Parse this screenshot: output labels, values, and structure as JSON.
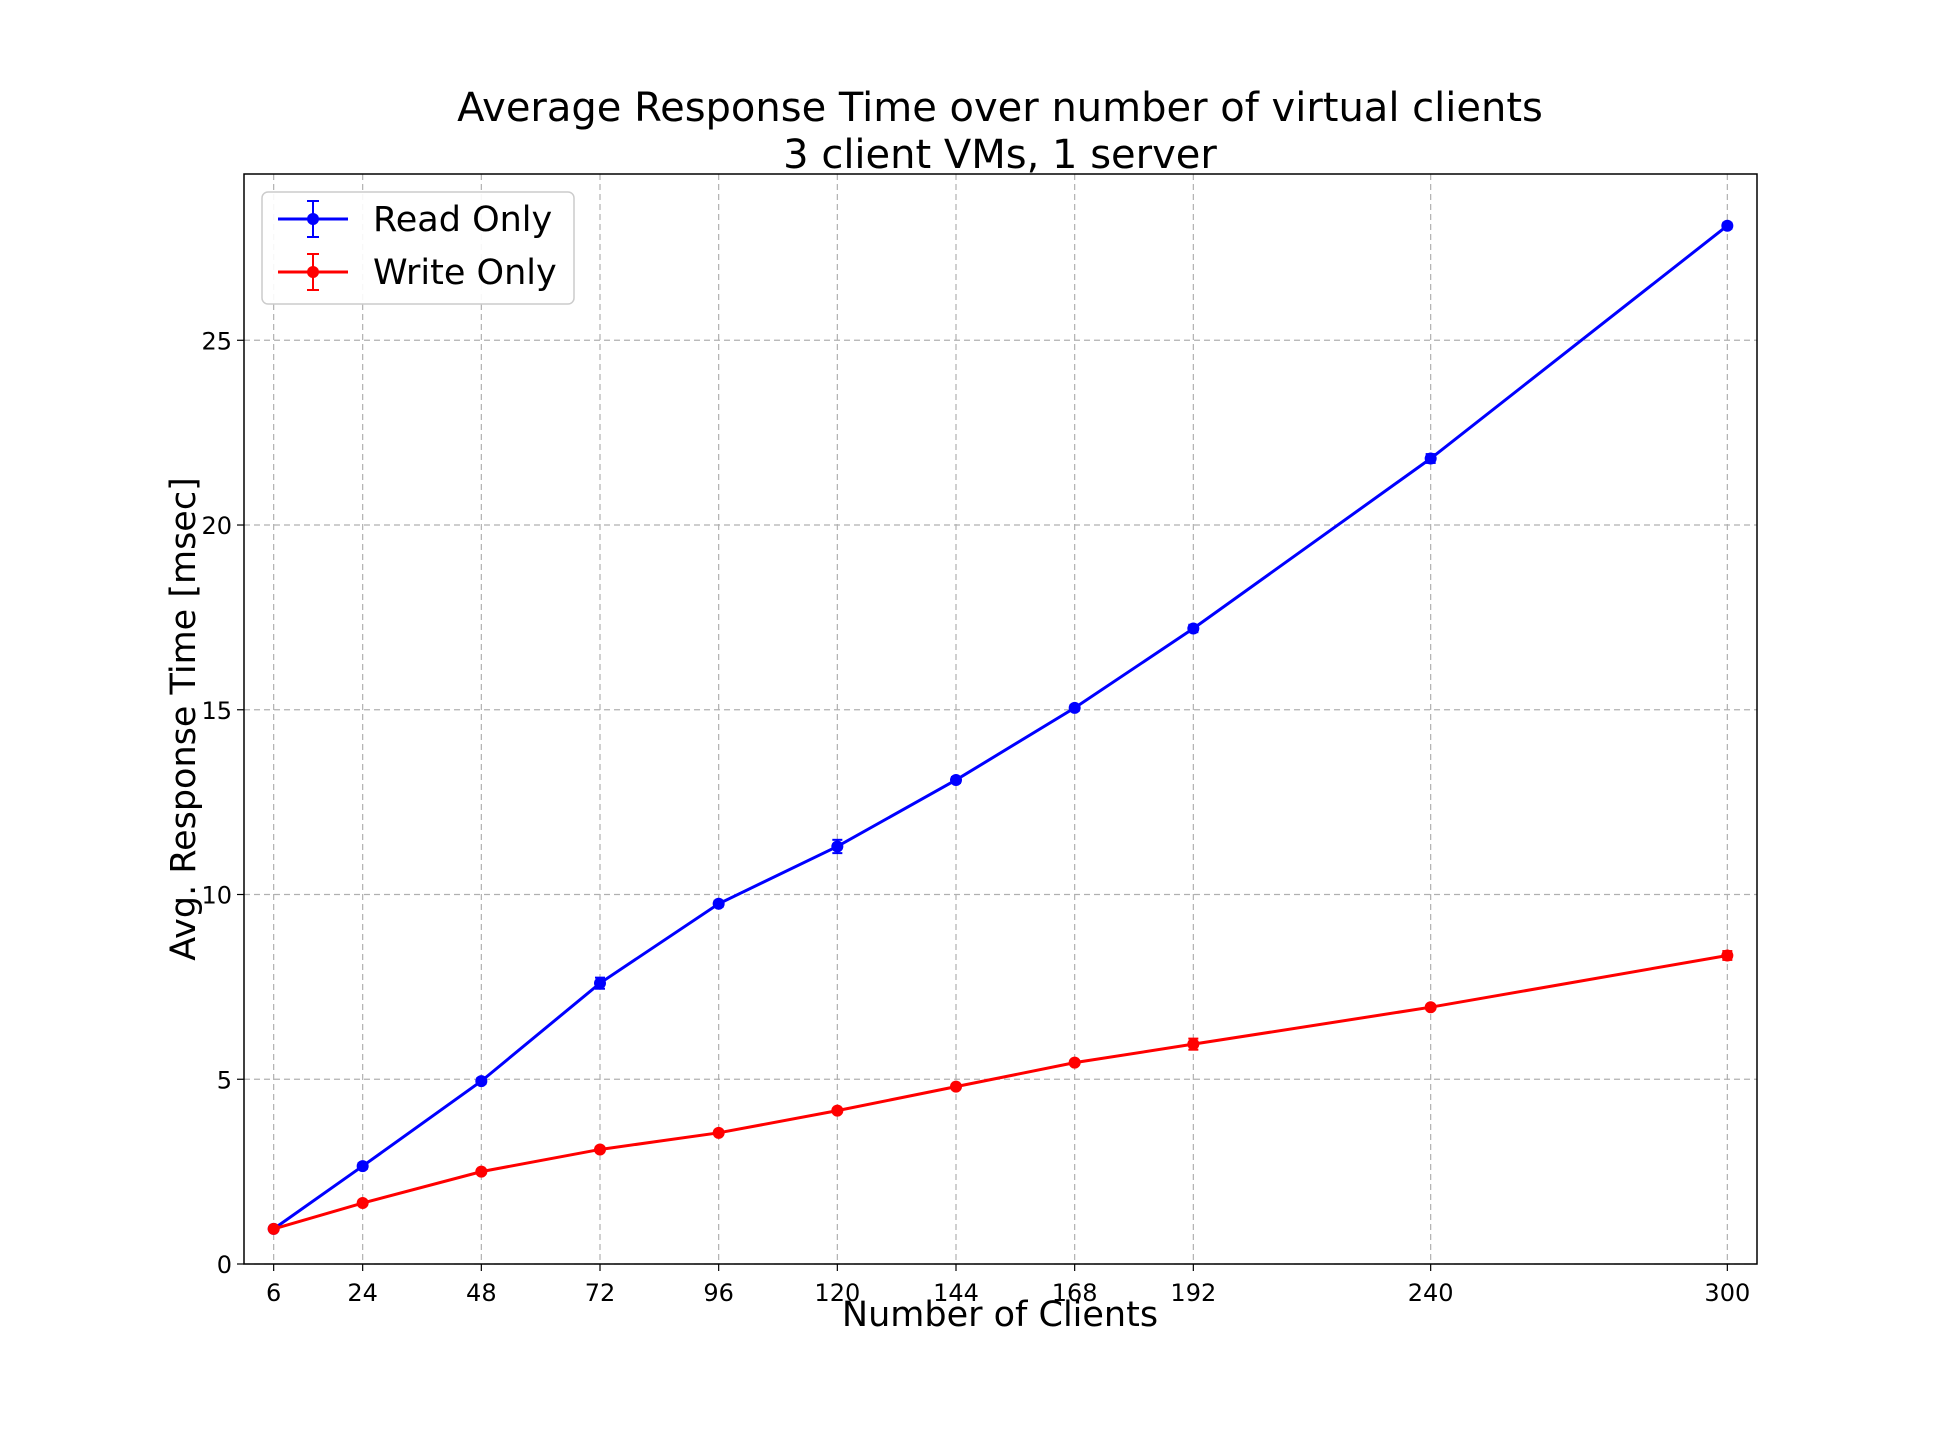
{
  "chart_data": {
    "type": "line",
    "title": "Average Response Time over number of virtual clients",
    "subtitle": "3 client VMs, 1 server",
    "xlabel": "Number of Clients",
    "ylabel": "Avg. Response Time [msec]",
    "x": [
      6,
      24,
      48,
      72,
      96,
      120,
      144,
      168,
      192,
      240,
      300
    ],
    "x_tick_labels": [
      "6",
      "24",
      "48",
      "72",
      "96",
      "120",
      "144",
      "168",
      "192",
      "240",
      "300"
    ],
    "xlim": [
      0,
      306
    ],
    "ylim": [
      0,
      29.5
    ],
    "y_ticks": [
      0,
      5,
      10,
      15,
      20,
      25
    ],
    "y_tick_labels": [
      "0",
      "5",
      "10",
      "15",
      "20",
      "25"
    ],
    "grid": true,
    "legend_position": "top-left",
    "series": [
      {
        "name": "Read Only",
        "color": "#0000ff",
        "values": [
          0.95,
          2.65,
          4.95,
          7.6,
          9.75,
          11.3,
          13.1,
          15.05,
          17.2,
          21.8,
          28.1
        ],
        "errors": [
          0.05,
          0.08,
          0.08,
          0.15,
          0.08,
          0.18,
          0.08,
          0.08,
          0.1,
          0.12,
          0.08
        ]
      },
      {
        "name": "Write Only",
        "color": "#ff0000",
        "values": [
          0.95,
          1.65,
          2.5,
          3.1,
          3.55,
          4.15,
          4.8,
          5.45,
          5.95,
          6.95,
          8.35
        ],
        "errors": [
          0.04,
          0.05,
          0.05,
          0.06,
          0.05,
          0.05,
          0.05,
          0.06,
          0.15,
          0.06,
          0.12
        ]
      }
    ]
  }
}
